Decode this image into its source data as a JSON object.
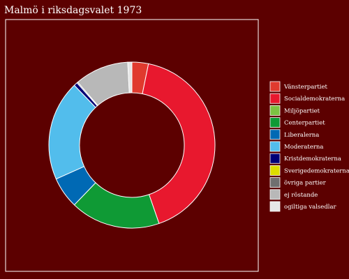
{
  "chart_data": {
    "type": "pie",
    "variant": "donut",
    "title": "Malmö i riksdagsvalet 1973",
    "background_color": "#5c0000",
    "legend_position": "right",
    "slices": [
      {
        "label": "Vänsterpartiet",
        "value": 3.2,
        "color": "#e03a2e"
      },
      {
        "label": "Socialdemokraterna",
        "value": 41.5,
        "color": "#e8182e"
      },
      {
        "label": "Miljöpartiet",
        "value": 0,
        "color": "#7cc242"
      },
      {
        "label": "Centerpartiet",
        "value": 17.5,
        "color": "#0f9a35"
      },
      {
        "label": "Liberalerna",
        "value": 6.1,
        "color": "#0069b4"
      },
      {
        "label": "Moderaterna",
        "value": 19.5,
        "color": "#52bdec"
      },
      {
        "label": "Kristdemokraterna",
        "value": 0.7,
        "color": "#000077"
      },
      {
        "label": "Sverigedemokraterna",
        "value": 0,
        "color": "#dddd00"
      },
      {
        "label": "övriga partier",
        "value": 0.2,
        "color": "#707070"
      },
      {
        "label": "ej röstande",
        "value": 10.5,
        "color": "#b8b8b8"
      },
      {
        "label": "ogiltiga valsedlar",
        "value": 0.8,
        "color": "#e6e6e6"
      }
    ]
  }
}
